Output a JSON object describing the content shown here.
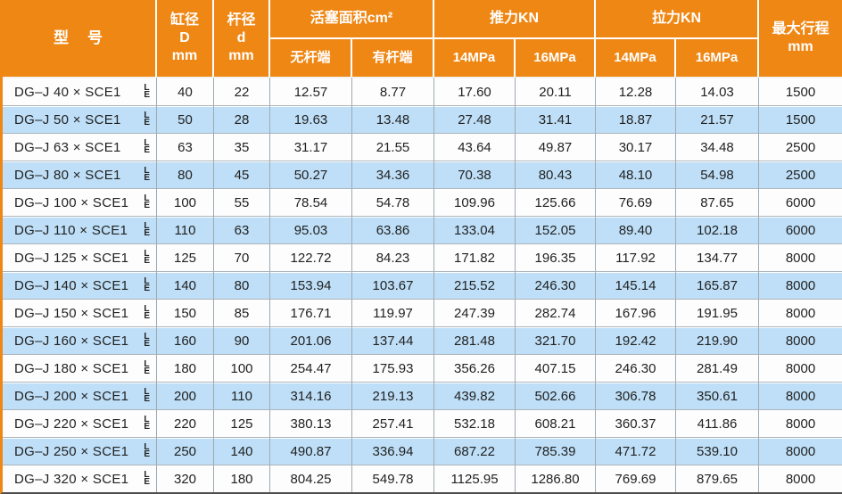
{
  "colors": {
    "header_bg": "#EF8715",
    "header_text": "#FFFFFF",
    "row_alt_bg": "#BEDFF7",
    "row_bg": "#FDFDFD",
    "body_text": "#222222",
    "left_border": "#EF8715",
    "bottom_border": "#4E4E4E",
    "grid_line": "#9FAAB2"
  },
  "table": {
    "header": {
      "model": "型　号",
      "bore": [
        "缸径",
        "D",
        "mm"
      ],
      "rod": [
        "杆径",
        "d",
        "mm"
      ],
      "piston_area": "活塞面积cm²",
      "piston_sub": [
        "无杆端",
        "有杆端"
      ],
      "thrust": "推力KN",
      "thrust_sub": [
        "14MPa",
        "16MPa"
      ],
      "pull": "拉力KN",
      "pull_sub": [
        "14MPa",
        "16MPa"
      ],
      "stroke": [
        "最大行程",
        "mm"
      ]
    },
    "variant_mark": {
      "top": "L",
      "bottom": "E"
    },
    "rows": [
      [
        "DG–J 40 × SCE1",
        "40",
        "22",
        "12.57",
        "8.77",
        "17.60",
        "20.11",
        "12.28",
        "14.03",
        "1500"
      ],
      [
        "DG–J 50 × SCE1",
        "50",
        "28",
        "19.63",
        "13.48",
        "27.48",
        "31.41",
        "18.87",
        "21.57",
        "1500"
      ],
      [
        "DG–J 63 × SCE1",
        "63",
        "35",
        "31.17",
        "21.55",
        "43.64",
        "49.87",
        "30.17",
        "34.48",
        "2500"
      ],
      [
        "DG–J 80 × SCE1",
        "80",
        "45",
        "50.27",
        "34.36",
        "70.38",
        "80.43",
        "48.10",
        "54.98",
        "2500"
      ],
      [
        "DG–J 100 × SCE1",
        "100",
        "55",
        "78.54",
        "54.78",
        "109.96",
        "125.66",
        "76.69",
        "87.65",
        "6000"
      ],
      [
        "DG–J 110 × SCE1",
        "110",
        "63",
        "95.03",
        "63.86",
        "133.04",
        "152.05",
        "89.40",
        "102.18",
        "6000"
      ],
      [
        "DG–J 125 × SCE1",
        "125",
        "70",
        "122.72",
        "84.23",
        "171.82",
        "196.35",
        "117.92",
        "134.77",
        "8000"
      ],
      [
        "DG–J 140 × SCE1",
        "140",
        "80",
        "153.94",
        "103.67",
        "215.52",
        "246.30",
        "145.14",
        "165.87",
        "8000"
      ],
      [
        "DG–J 150 × SCE1",
        "150",
        "85",
        "176.71",
        "119.97",
        "247.39",
        "282.74",
        "167.96",
        "191.95",
        "8000"
      ],
      [
        "DG–J 160 × SCE1",
        "160",
        "90",
        "201.06",
        "137.44",
        "281.48",
        "321.70",
        "192.42",
        "219.90",
        "8000"
      ],
      [
        "DG–J 180 × SCE1",
        "180",
        "100",
        "254.47",
        "175.93",
        "356.26",
        "407.15",
        "246.30",
        "281.49",
        "8000"
      ],
      [
        "DG–J 200 × SCE1",
        "200",
        "110",
        "314.16",
        "219.13",
        "439.82",
        "502.66",
        "306.78",
        "350.61",
        "8000"
      ],
      [
        "DG–J 220 × SCE1",
        "220",
        "125",
        "380.13",
        "257.41",
        "532.18",
        "608.21",
        "360.37",
        "411.86",
        "8000"
      ],
      [
        "DG–J 250 × SCE1",
        "250",
        "140",
        "490.87",
        "336.94",
        "687.22",
        "785.39",
        "471.72",
        "539.10",
        "8000"
      ],
      [
        "DG–J 320 × SCE1",
        "320",
        "180",
        "804.25",
        "549.78",
        "1125.95",
        "1286.80",
        "769.69",
        "879.65",
        "8000"
      ]
    ]
  }
}
